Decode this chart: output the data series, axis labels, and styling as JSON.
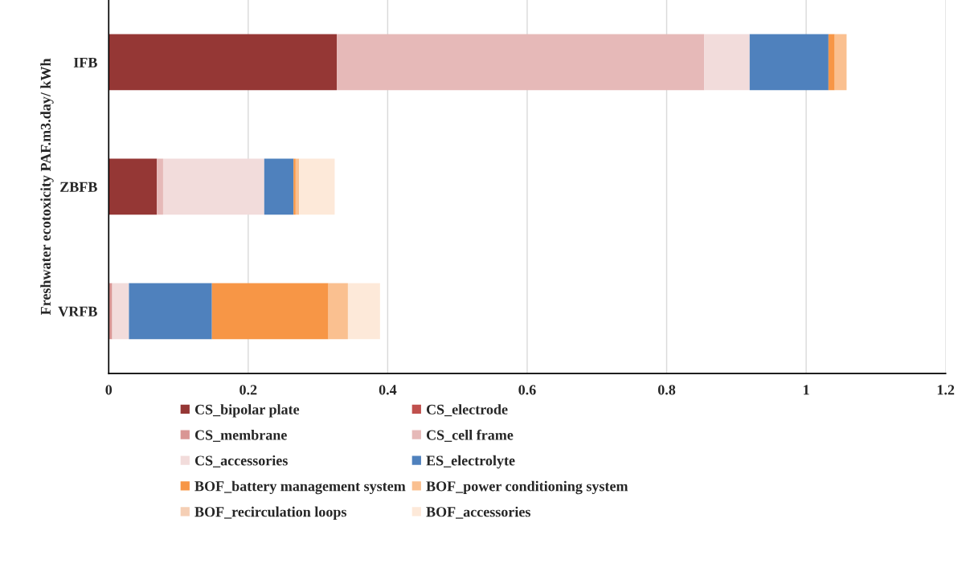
{
  "chart_data": {
    "type": "bar",
    "orientation": "horizontal",
    "stacked": true,
    "ylabel": "Freshwater ecotoxicity PAF.m3.day/ kWh",
    "categories": [
      "IFB",
      "ZBFB",
      "VRFB"
    ],
    "series": [
      {
        "name": "CS_bipolar plate",
        "color": "#953735",
        "values": [
          0.327,
          0.069,
          0
        ]
      },
      {
        "name": "CS_electrode",
        "color": "#c0504d",
        "values": [
          0,
          0,
          0
        ]
      },
      {
        "name": "CS_membrane",
        "color": "#d99694",
        "values": [
          0,
          0,
          0.005
        ]
      },
      {
        "name": "CS_cell frame",
        "color": "#e6b9b8",
        "values": [
          0.527,
          0.009,
          0
        ]
      },
      {
        "name": "CS_accessories",
        "color": "#f2dcdb",
        "values": [
          0.065,
          0.145,
          0.024
        ]
      },
      {
        "name": "ES_electrolyte",
        "color": "#4f81bd",
        "values": [
          0.113,
          0.042,
          0.119
        ]
      },
      {
        "name": "BOF_battery management system",
        "color": "#f79646",
        "values": [
          0.009,
          0.003,
          0.167
        ]
      },
      {
        "name": "BOF_power conditioning system",
        "color": "#fac090",
        "values": [
          0.017,
          0.005,
          0.028
        ]
      },
      {
        "name": "BOF_recirculation loops",
        "color": "#f5cfb5",
        "values": [
          0,
          0,
          0
        ]
      },
      {
        "name": "BOF_accessories",
        "color": "#fde9d9",
        "values": [
          0,
          0.051,
          0.046
        ]
      }
    ],
    "xlim": [
      0,
      1.2
    ],
    "xticks": [
      0,
      0.2,
      0.4,
      0.6,
      0.8,
      1,
      1.2
    ],
    "grid": "x",
    "legend": "bottom"
  }
}
